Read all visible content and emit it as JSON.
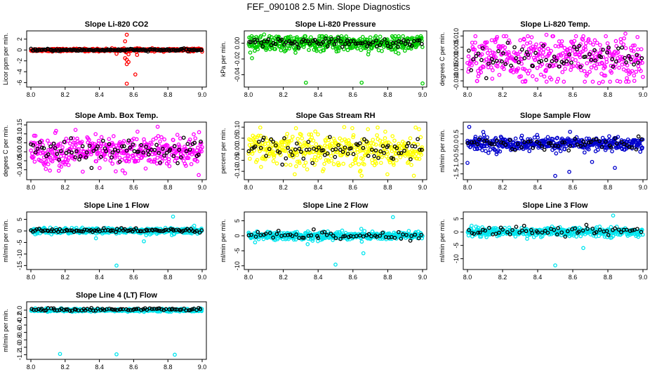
{
  "title": "FEF_090108  2.5 Min. Slope Diagnostics",
  "chart_data": [
    {
      "type": "scatter",
      "title": "Slope Li-820 CO2",
      "ylabel": "Licor ppm per min.",
      "xlim": [
        8.0,
        9.0
      ],
      "ylim": [
        -6.3,
        3.0
      ],
      "xticks": [
        "8.0",
        "8.2",
        "8.4",
        "8.6",
        "8.8",
        "9.0"
      ],
      "yticks": [
        {
          "v": 2,
          "l": "2"
        },
        {
          "v": 0,
          "l": "0"
        },
        {
          "v": -2,
          "l": "-2"
        },
        {
          "v": -4,
          "l": "-4"
        },
        {
          "v": -6,
          "l": "-6"
        }
      ],
      "series": [
        {
          "name": "main",
          "color": "#ff0000",
          "n": 420,
          "center": 0,
          "spread": 0.12,
          "outliers": [
            [
              8.56,
              2.8
            ],
            [
              8.55,
              1.6
            ],
            [
              8.57,
              -0.8
            ],
            [
              8.56,
              -1.8
            ],
            [
              8.55,
              -1.5
            ],
            [
              8.56,
              -2.6
            ],
            [
              8.57,
              -2.2
            ],
            [
              8.61,
              -4.5
            ],
            [
              8.56,
              -6.2
            ],
            [
              8.5,
              -0.7
            ],
            [
              8.62,
              -0.9
            ]
          ]
        },
        {
          "name": "black",
          "color": "#000000",
          "n": 150,
          "center": 0,
          "spread": 0.1,
          "outliers": []
        }
      ]
    },
    {
      "type": "scatter",
      "title": "Slope Li-820 Pressure",
      "ylabel": "kPa per min.",
      "xlim": [
        8.0,
        9.0
      ],
      "ylim": [
        -0.052,
        0.012
      ],
      "xticks": [
        "8.0",
        "8.2",
        "8.4",
        "8.6",
        "8.8",
        "9.0"
      ],
      "yticks": [
        {
          "v": 0.0,
          "l": "0.00"
        },
        {
          "v": -0.02,
          "l": "-0.02"
        },
        {
          "v": -0.04,
          "l": "-0.04"
        }
      ],
      "series": [
        {
          "name": "main",
          "color": "#00cc00",
          "n": 450,
          "center": 0,
          "spread": 0.005,
          "outliers": [
            [
              8.09,
              0.011
            ],
            [
              8.33,
              -0.05
            ],
            [
              8.65,
              -0.05
            ],
            [
              9.0,
              -0.051
            ],
            [
              8.02,
              -0.019
            ],
            [
              8.97,
              0.008
            ]
          ]
        },
        {
          "name": "black",
          "color": "#000000",
          "n": 80,
          "center": 0,
          "spread": 0.003,
          "outliers": []
        }
      ]
    },
    {
      "type": "scatter",
      "title": "Slope Li-820 Temp.",
      "ylabel": "degrees C per min.",
      "xlim": [
        8.0,
        9.0
      ],
      "ylim": [
        -0.0115,
        0.011
      ],
      "xticks": [
        "8.0",
        "8.2",
        "8.4",
        "8.6",
        "8.8",
        "9.0"
      ],
      "yticks": [
        {
          "v": 0.01,
          "l": "0.010"
        },
        {
          "v": 0.005,
          "l": "0.005"
        },
        {
          "v": 0.0,
          "l": "0.000"
        },
        {
          "v": -0.005,
          "l": "-0.005"
        },
        {
          "v": -0.01,
          "l": "-0.010"
        }
      ],
      "series": [
        {
          "name": "main",
          "color": "#ff00ff",
          "n": 400,
          "center": 0,
          "spread": 0.005,
          "outliers": [
            [
              8.9,
              0.011
            ],
            [
              8.75,
              -0.011
            ],
            [
              8.45,
              0.0105
            ]
          ]
        },
        {
          "name": "black",
          "color": "#000000",
          "n": 70,
          "center": 0,
          "spread": 0.003,
          "outliers": []
        }
      ]
    },
    {
      "type": "scatter",
      "title": "Slope Amb. Box Temp.",
      "ylabel": "degees C per min.",
      "xlim": [
        8.0,
        9.0
      ],
      "ylim": [
        -0.14,
        0.15
      ],
      "xticks": [
        "8.0",
        "8.2",
        "8.4",
        "8.6",
        "8.8",
        "9.0"
      ],
      "yticks": [
        {
          "v": 0.15,
          "l": "0.15"
        },
        {
          "v": 0.1,
          "l": "0.10"
        },
        {
          "v": 0.05,
          "l": "0.05"
        },
        {
          "v": 0.0,
          "l": "0.00"
        },
        {
          "v": -0.05,
          "l": "-0.05"
        },
        {
          "v": -0.1,
          "l": "-0.10"
        }
      ],
      "series": [
        {
          "name": "main",
          "color": "#ff00ff",
          "n": 420,
          "center": 0,
          "spread": 0.045,
          "outliers": [
            [
              8.74,
              0.14
            ],
            [
              8.98,
              -0.13
            ],
            [
              8.55,
              -0.12
            ]
          ]
        },
        {
          "name": "black",
          "color": "#000000",
          "n": 80,
          "center": 0,
          "spread": 0.03,
          "outliers": []
        }
      ]
    },
    {
      "type": "scatter",
      "title": "Slope Gas Stream RH",
      "ylabel": "percent per min.",
      "xlim": [
        8.0,
        9.0
      ],
      "ylim": [
        -0.125,
        0.11
      ],
      "xticks": [
        "8.0",
        "8.2",
        "8.4",
        "8.6",
        "8.8",
        "9.0"
      ],
      "yticks": [
        {
          "v": 0.1,
          "l": "0.10"
        },
        {
          "v": 0.05,
          "l": "0.05"
        },
        {
          "v": 0.0,
          "l": "0.00"
        },
        {
          "v": -0.05,
          "l": "-0.05"
        },
        {
          "v": -0.1,
          "l": "-0.10"
        }
      ],
      "series": [
        {
          "name": "main",
          "color": "#ffff00",
          "n": 420,
          "center": 0,
          "spread": 0.038,
          "outliers": [
            [
              8.65,
              -0.12
            ],
            [
              8.95,
              -0.12
            ],
            [
              8.55,
              0.1
            ]
          ]
        },
        {
          "name": "black",
          "color": "#000000",
          "n": 80,
          "center": 0,
          "spread": 0.03,
          "outliers": []
        }
      ]
    },
    {
      "type": "scatter",
      "title": "Slope Sample Flow",
      "ylabel": "ml/min per min.",
      "xlim": [
        8.0,
        9.0
      ],
      "ylim": [
        -1.65,
        0.95
      ],
      "xticks": [
        "8.0",
        "8.2",
        "8.4",
        "8.6",
        "8.8",
        "9.0"
      ],
      "yticks": [
        {
          "v": 0.5,
          "l": "0.5"
        },
        {
          "v": 0.0,
          "l": "0.0"
        },
        {
          "v": -0.5,
          "l": "-0.5"
        },
        {
          "v": -1.0,
          "l": "-1.0"
        },
        {
          "v": -1.5,
          "l": "-1.5"
        }
      ],
      "series": [
        {
          "name": "main",
          "color": "#0000cc",
          "n": 420,
          "center": 0,
          "spread": 0.17,
          "outliers": [
            [
              8.01,
              0.85
            ],
            [
              8.0,
              -0.95
            ],
            [
              8.09,
              0.6
            ],
            [
              8.5,
              -1.6
            ],
            [
              8.58,
              -1.4
            ],
            [
              8.84,
              -1.2
            ],
            [
              8.71,
              -0.9
            ]
          ]
        },
        {
          "name": "black",
          "color": "#000000",
          "n": 60,
          "center": 0,
          "spread": 0.15,
          "outliers": []
        }
      ]
    },
    {
      "type": "scatter",
      "title": "Slope Line 1 Flow",
      "ylabel": "ml/min per min.",
      "xlim": [
        8.0,
        9.0
      ],
      "ylim": [
        -15.5,
        7.0
      ],
      "xticks": [
        "8.0",
        "8.2",
        "8.4",
        "8.6",
        "8.8",
        "9.0"
      ],
      "yticks": [
        {
          "v": 5,
          "l": "5"
        },
        {
          "v": 0,
          "l": "0"
        },
        {
          "v": -5,
          "l": "-5"
        },
        {
          "v": -10,
          "l": "-10"
        },
        {
          "v": -15,
          "l": "-15"
        }
      ],
      "series": [
        {
          "name": "main",
          "color": "#00e5ee",
          "n": 420,
          "center": 0,
          "spread": 0.6,
          "outliers": [
            [
              8.83,
              6.2
            ],
            [
              8.38,
              -3.2
            ],
            [
              8.66,
              -4.5
            ],
            [
              8.5,
              -15.0
            ]
          ]
        },
        {
          "name": "black",
          "color": "#000000",
          "n": 90,
          "center": 0.2,
          "spread": 0.4,
          "outliers": []
        }
      ]
    },
    {
      "type": "scatter",
      "title": "Slope Line 2 Flow",
      "ylabel": "ml/min per min.",
      "xlim": [
        8.0,
        9.0
      ],
      "ylim": [
        -10.3,
        7.0
      ],
      "xticks": [
        "8.0",
        "8.2",
        "8.4",
        "8.6",
        "8.8",
        "9.0"
      ],
      "yticks": [
        {
          "v": 5,
          "l": "5"
        },
        {
          "v": 0,
          "l": "0"
        },
        {
          "v": -5,
          "l": "-5"
        },
        {
          "v": -10,
          "l": "-10"
        }
      ],
      "series": [
        {
          "name": "main",
          "color": "#00e5ee",
          "n": 400,
          "center": 0,
          "spread": 0.7,
          "outliers": [
            [
              8.83,
              6.2
            ],
            [
              8.66,
              -5.8
            ],
            [
              8.5,
              -9.6
            ],
            [
              8.34,
              -2.8
            ]
          ]
        },
        {
          "name": "black",
          "color": "#000000",
          "n": 60,
          "center": 0.2,
          "spread": 0.8,
          "outliers": []
        }
      ]
    },
    {
      "type": "scatter",
      "title": "Slope Line 3 Flow",
      "ylabel": "ml/min per min.",
      "xlim": [
        8.0,
        9.0
      ],
      "ylim": [
        -13.0,
        6.5
      ],
      "xticks": [
        "8.0",
        "8.2",
        "8.4",
        "8.6",
        "8.8",
        "9.0"
      ],
      "yticks": [
        {
          "v": 5,
          "l": "5"
        },
        {
          "v": 0,
          "l": "0"
        },
        {
          "v": -5,
          "l": "-5"
        },
        {
          "v": -10,
          "l": "-10"
        }
      ],
      "series": [
        {
          "name": "main",
          "color": "#00e5ee",
          "n": 400,
          "center": 0,
          "spread": 0.8,
          "outliers": [
            [
              8.83,
              6.2
            ],
            [
              8.66,
              -6.0
            ],
            [
              8.5,
              -12.5
            ],
            [
              8.34,
              -2.5
            ]
          ]
        },
        {
          "name": "black",
          "color": "#000000",
          "n": 60,
          "center": 0.5,
          "spread": 0.8,
          "outliers": []
        }
      ]
    },
    {
      "type": "scatter",
      "title": "Slope Line 4 (LT) Flow",
      "ylabel": "ml/min per min.",
      "xlim": [
        8.0,
        9.0
      ],
      "ylim": [
        -1.25,
        0.15
      ],
      "xticks": [
        "8.0",
        "8.2",
        "8.4",
        "8.6",
        "8.8",
        "9.0"
      ],
      "yticks": [
        {
          "v": 0.0,
          "l": "0.0"
        },
        {
          "v": -0.2,
          "l": "-0.2"
        },
        {
          "v": -0.4,
          "l": "-0.4"
        },
        {
          "v": -0.6,
          "l": "-0.6"
        },
        {
          "v": -0.8,
          "l": "-0.8"
        },
        {
          "v": -1.0,
          "l": "-1.0"
        },
        {
          "v": -1.2,
          "l": "-1.2"
        }
      ],
      "series": [
        {
          "name": "main",
          "color": "#00e5ee",
          "n": 400,
          "center": 0,
          "spread": 0.018,
          "outliers": [
            [
              8.17,
              -1.18
            ],
            [
              8.5,
              -1.19
            ],
            [
              8.84,
              -1.2
            ]
          ]
        },
        {
          "name": "black",
          "color": "#000000",
          "n": 80,
          "center": 0.02,
          "spread": 0.02,
          "outliers": []
        }
      ]
    }
  ]
}
